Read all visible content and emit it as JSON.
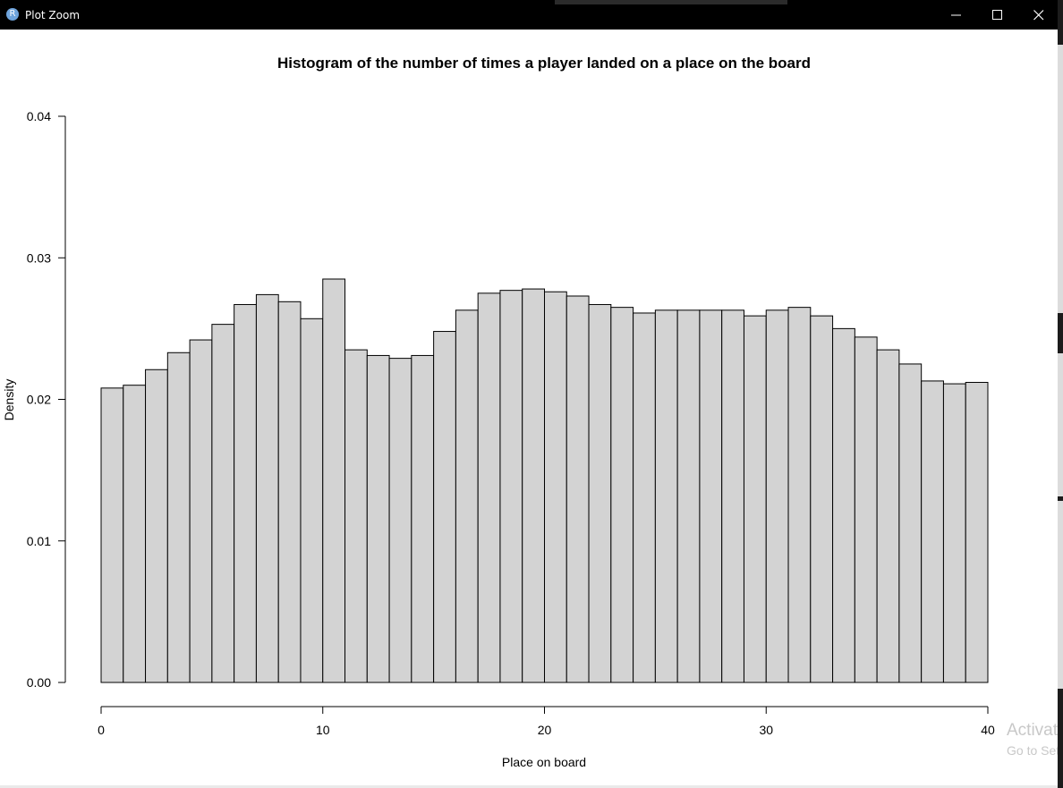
{
  "window": {
    "title": "Plot Zoom",
    "app_icon_letter": "R",
    "controls": {
      "minimize": "minimize",
      "maximize": "maximize",
      "close": "close"
    }
  },
  "watermark": {
    "line1": "Activate Windows",
    "line2": "Go to Settings to activate Windows."
  },
  "colors": {
    "titlebar": "#000000",
    "bar_fill": "#d3d3d3",
    "bar_stroke": "#000000",
    "background": "#ffffff"
  },
  "chart_data": {
    "type": "bar",
    "title": "Histogram of the number of times a player landed on a place on the board",
    "xlabel": "Place on board",
    "ylabel": "Density",
    "xlim": [
      0,
      40
    ],
    "ylim": [
      0,
      0.04
    ],
    "xticks": [
      "0",
      "10",
      "20",
      "30",
      "40"
    ],
    "yticks": [
      "0.00",
      "0.01",
      "0.02",
      "0.03",
      "0.04"
    ],
    "bin_width": 1,
    "bin_starts": [
      0,
      1,
      2,
      3,
      4,
      5,
      6,
      7,
      8,
      9,
      10,
      11,
      12,
      13,
      14,
      15,
      16,
      17,
      18,
      19,
      20,
      21,
      22,
      23,
      24,
      25,
      26,
      27,
      28,
      29,
      30,
      31,
      32,
      33,
      34,
      35,
      36,
      37,
      38,
      39
    ],
    "values": [
      0.0208,
      0.021,
      0.0221,
      0.0233,
      0.0242,
      0.0253,
      0.0267,
      0.0274,
      0.0269,
      0.0257,
      0.0285,
      0.0235,
      0.0231,
      0.0229,
      0.0231,
      0.0248,
      0.0263,
      0.0275,
      0.0277,
      0.0278,
      0.0276,
      0.0273,
      0.0267,
      0.0265,
      0.0261,
      0.0263,
      0.0263,
      0.0263,
      0.0263,
      0.0259,
      0.0263,
      0.0265,
      0.0259,
      0.025,
      0.0244,
      0.0235,
      0.0225,
      0.0213,
      0.0211,
      0.0212
    ],
    "grid": false,
    "legend": "none"
  }
}
